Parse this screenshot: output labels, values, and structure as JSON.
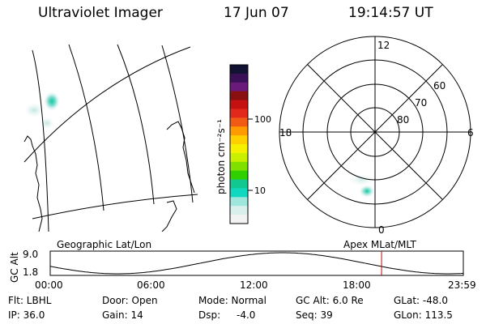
{
  "header": {
    "title": "Ultraviolet Imager",
    "date": "17 Jun 07",
    "time": "19:14:57 UT"
  },
  "colorbar": {
    "label": "photon cm⁻²s⁻¹",
    "ticks": [
      "100",
      "10"
    ],
    "colors": [
      "#111133",
      "#3a0f55",
      "#6a1a7a",
      "#8a1010",
      "#c41010",
      "#e2281a",
      "#f05a14",
      "#ff9a00",
      "#ffd000",
      "#f5f000",
      "#c8f000",
      "#80e000",
      "#30d000",
      "#10c890",
      "#10d8c0",
      "#9ee6dc",
      "#d8efec",
      "#f2f2f2"
    ]
  },
  "polar_plot": {
    "mlt_labels": {
      "top": "12",
      "bottom": "0",
      "left": "18",
      "right": "6"
    },
    "lat_labels": [
      "60",
      "70",
      "80"
    ]
  },
  "timeline": {
    "left_label": "Geographic Lat/Lon",
    "right_label": "Apex MLat/MLT",
    "axis_label": "GC Alt",
    "y_ticks": [
      "9.0",
      "1.8"
    ],
    "x_ticks": [
      "00:00",
      "06:00",
      "12:00",
      "18:00",
      "23:59"
    ],
    "current_time_hours": 19.25
  },
  "info": {
    "filter": "Flt: LBHL",
    "ip": "IP: 36.0",
    "door": "Door: Open",
    "gain": "Gain: 14",
    "mode": "Mode: Normal",
    "dsp_label": "Dsp:",
    "dsp_value": "-4.0",
    "gc_alt": "GC Alt: 6.0 Re",
    "seq": "Seq: 39",
    "glat": "GLat: -48.0",
    "glon": "GLon: 113.5"
  }
}
